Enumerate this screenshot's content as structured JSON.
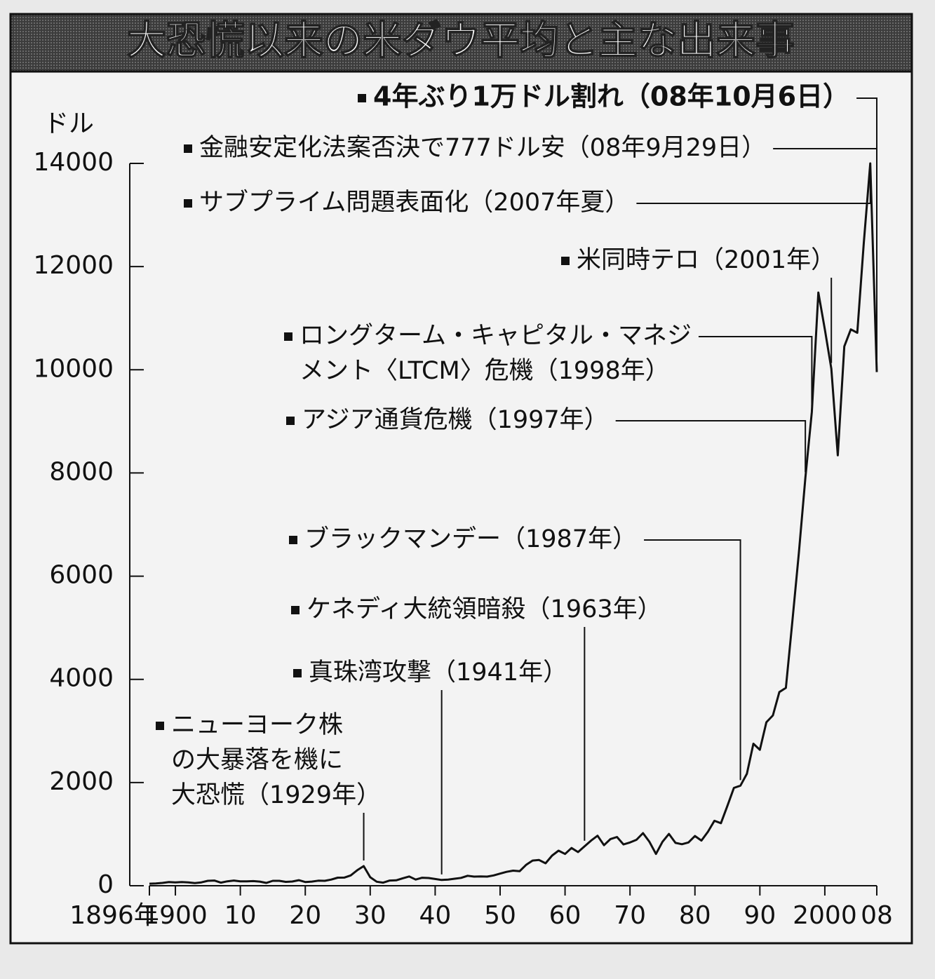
{
  "chart_data": {
    "type": "line",
    "title": "大恐慌以来の米ダウ平均と主な出来事",
    "y_label": "ドル",
    "color": "#111111",
    "xlim": [
      1896,
      2008
    ],
    "ylim": [
      0,
      14000
    ],
    "yticks": [
      0,
      2000,
      4000,
      6000,
      8000,
      10000,
      12000,
      14000
    ],
    "xticks": [
      {
        "value": 1896,
        "label": "1896年"
      },
      1900,
      {
        "value": 1910,
        "label": "10"
      },
      {
        "value": 1920,
        "label": "20"
      },
      {
        "value": 1930,
        "label": "30"
      },
      {
        "value": 1940,
        "label": "40"
      },
      {
        "value": 1950,
        "label": "50"
      },
      {
        "value": 1960,
        "label": "60"
      },
      {
        "value": 1970,
        "label": "70"
      },
      {
        "value": 1980,
        "label": "80"
      },
      {
        "value": 1990,
        "label": "90"
      },
      2000,
      {
        "value": 2008,
        "label": "08"
      }
    ],
    "x": [
      1896,
      1897,
      1898,
      1899,
      1900,
      1901,
      1902,
      1903,
      1904,
      1905,
      1906,
      1907,
      1908,
      1909,
      1910,
      1911,
      1912,
      1913,
      1914,
      1915,
      1916,
      1917,
      1918,
      1919,
      1920,
      1921,
      1922,
      1923,
      1924,
      1925,
      1926,
      1927,
      1928,
      1929,
      1930,
      1931,
      1932,
      1933,
      1934,
      1935,
      1936,
      1937,
      1938,
      1939,
      1940,
      1941,
      1942,
      1943,
      1944,
      1945,
      1946,
      1947,
      1948,
      1949,
      1950,
      1951,
      1952,
      1953,
      1954,
      1955,
      1956,
      1957,
      1958,
      1959,
      1960,
      1961,
      1962,
      1963,
      1964,
      1965,
      1966,
      1967,
      1968,
      1969,
      1970,
      1971,
      1972,
      1973,
      1974,
      1975,
      1976,
      1977,
      1978,
      1979,
      1980,
      1981,
      1982,
      1983,
      1984,
      1985,
      1986,
      1987,
      1988,
      1989,
      1990,
      1991,
      1992,
      1993,
      1994,
      1995,
      1996,
      1997,
      1998,
      1999,
      2000,
      2001,
      2002,
      2003,
      2004,
      2005,
      2006,
      2007,
      2008
    ],
    "values": [
      40,
      45,
      55,
      70,
      65,
      70,
      65,
      50,
      65,
      95,
      100,
      60,
      85,
      100,
      85,
      85,
      90,
      80,
      55,
      95,
      95,
      75,
      82,
      107,
      72,
      80,
      98,
      95,
      120,
      156,
      157,
      200,
      300,
      380,
      165,
      78,
      60,
      100,
      104,
      144,
      180,
      120,
      155,
      150,
      131,
      111,
      119,
      136,
      152,
      193,
      177,
      181,
      177,
      200,
      235,
      269,
      292,
      281,
      404,
      488,
      499,
      435,
      584,
      679,
      616,
      731,
      652,
      763,
      874,
      969,
      786,
      905,
      944,
      800,
      839,
      890,
      1020,
      851,
      616,
      852,
      1005,
      831,
      805,
      839,
      964,
      875,
      1047,
      1259,
      1212,
      1547,
      1896,
      1939,
      2169,
      2753,
      2634,
      3169,
      3301,
      3754,
      3834,
      5117,
      6448,
      7908,
      9181,
      11497,
      10787,
      10022,
      8342,
      10454,
      10783,
      10718,
      12463,
      14000,
      9955
    ],
    "annotations": [
      {
        "text": [
          "4年ぶり1万ドル割れ（08年10月6日）"
        ],
        "x": 2008
      },
      {
        "text": [
          "金融安定化法案否決で777ドル安（08年9月29日）"
        ],
        "x": 2008
      },
      {
        "text": [
          "サブプライム問題表面化（2007年夏）"
        ],
        "x": 2007
      },
      {
        "text": [
          "米同時テロ（2001年）"
        ],
        "x": 2001
      },
      {
        "text": [
          "ロングターム・キャピタル・マネジ",
          "メント〈LTCM〉危機（1998年）"
        ],
        "x": 1998
      },
      {
        "text": [
          "アジア通貨危機（1997年）"
        ],
        "x": 1997
      },
      {
        "text": [
          "ブラックマンデー（1987年）"
        ],
        "x": 1987
      },
      {
        "text": [
          "ケネディ大統領暗殺（1963年）"
        ],
        "x": 1963
      },
      {
        "text": [
          "真珠湾攻撃（1941年）"
        ],
        "x": 1941
      },
      {
        "text": [
          "ニューヨーク株",
          "の大暴落を機に",
          "大恐慌（1929年）"
        ],
        "x": 1929
      }
    ]
  }
}
